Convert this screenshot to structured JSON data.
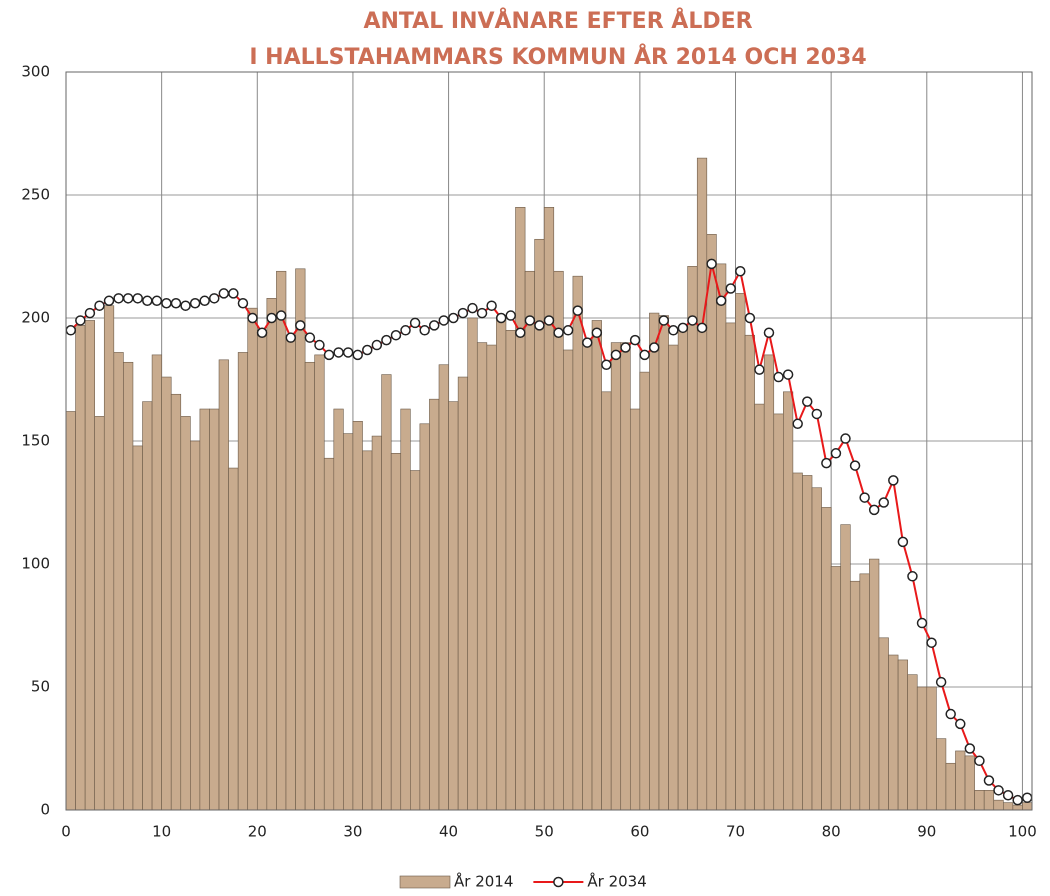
{
  "chart_data": {
    "type": "bar",
    "title": [
      "ANTAL INVÅNARE EFTER ÅLDER",
      "I HALLSTAHAMMARS KOMMUN ÅR 2014 OCH 2034"
    ],
    "x": [
      0,
      1,
      2,
      3,
      4,
      5,
      6,
      7,
      8,
      9,
      10,
      11,
      12,
      13,
      14,
      15,
      16,
      17,
      18,
      19,
      20,
      21,
      22,
      23,
      24,
      25,
      26,
      27,
      28,
      29,
      30,
      31,
      32,
      33,
      34,
      35,
      36,
      37,
      38,
      39,
      40,
      41,
      42,
      43,
      44,
      45,
      46,
      47,
      48,
      49,
      50,
      51,
      52,
      53,
      54,
      55,
      56,
      57,
      58,
      59,
      60,
      61,
      62,
      63,
      64,
      65,
      66,
      67,
      68,
      69,
      70,
      71,
      72,
      73,
      74,
      75,
      76,
      77,
      78,
      79,
      80,
      81,
      82,
      83,
      84,
      85,
      86,
      87,
      88,
      89,
      90,
      91,
      92,
      93,
      94,
      95,
      96,
      97,
      98,
      99,
      100
    ],
    "series": [
      {
        "name": "År 2014",
        "type": "bar",
        "color": "#c8ab8e",
        "values": [
          162,
          197,
          199,
          160,
          205,
          186,
          182,
          148,
          166,
          185,
          176,
          169,
          160,
          150,
          163,
          163,
          183,
          139,
          186,
          204,
          195,
          208,
          219,
          193,
          220,
          182,
          185,
          143,
          163,
          153,
          158,
          146,
          152,
          177,
          145,
          163,
          138,
          157,
          167,
          181,
          166,
          176,
          200,
          190,
          189,
          200,
          195,
          245,
          219,
          232,
          245,
          219,
          187,
          217,
          190,
          199,
          170,
          190,
          190,
          163,
          178,
          202,
          201,
          189,
          196,
          221,
          265,
          234,
          222,
          198,
          210,
          193,
          165,
          185,
          161,
          170,
          137,
          136,
          131,
          123,
          99,
          116,
          93,
          96,
          102,
          70,
          63,
          61,
          55,
          50,
          50,
          29,
          19,
          24,
          22,
          8,
          8,
          4,
          3,
          2,
          3
        ]
      },
      {
        "name": "År 2034",
        "type": "line",
        "color": "#e8191a",
        "values": [
          195,
          199,
          202,
          205,
          207,
          208,
          208,
          208,
          207,
          207,
          206,
          206,
          205,
          206,
          207,
          208,
          210,
          210,
          206,
          200,
          194,
          200,
          201,
          192,
          197,
          192,
          189,
          185,
          186,
          186,
          185,
          187,
          189,
          191,
          193,
          195,
          198,
          195,
          197,
          199,
          200,
          202,
          204,
          202,
          205,
          200,
          201,
          194,
          199,
          197,
          199,
          194,
          195,
          203,
          190,
          194,
          181,
          185,
          188,
          191,
          185,
          188,
          199,
          195,
          196,
          199,
          196,
          222,
          207,
          212,
          219,
          200,
          179,
          194,
          176,
          177,
          157,
          166,
          161,
          141,
          145,
          151,
          140,
          127,
          122,
          125,
          134,
          109,
          95,
          76,
          68,
          52,
          39,
          35,
          25,
          20,
          12,
          8,
          6,
          4,
          5
        ]
      }
    ],
    "xlim": [
      0,
      101
    ],
    "xticks": [
      0,
      10,
      20,
      30,
      40,
      50,
      60,
      70,
      80,
      90,
      100
    ],
    "ylim": [
      0,
      300
    ],
    "yticks": [
      0,
      50,
      100,
      150,
      200,
      250,
      300
    ],
    "grid": true,
    "legend": "bottom"
  }
}
